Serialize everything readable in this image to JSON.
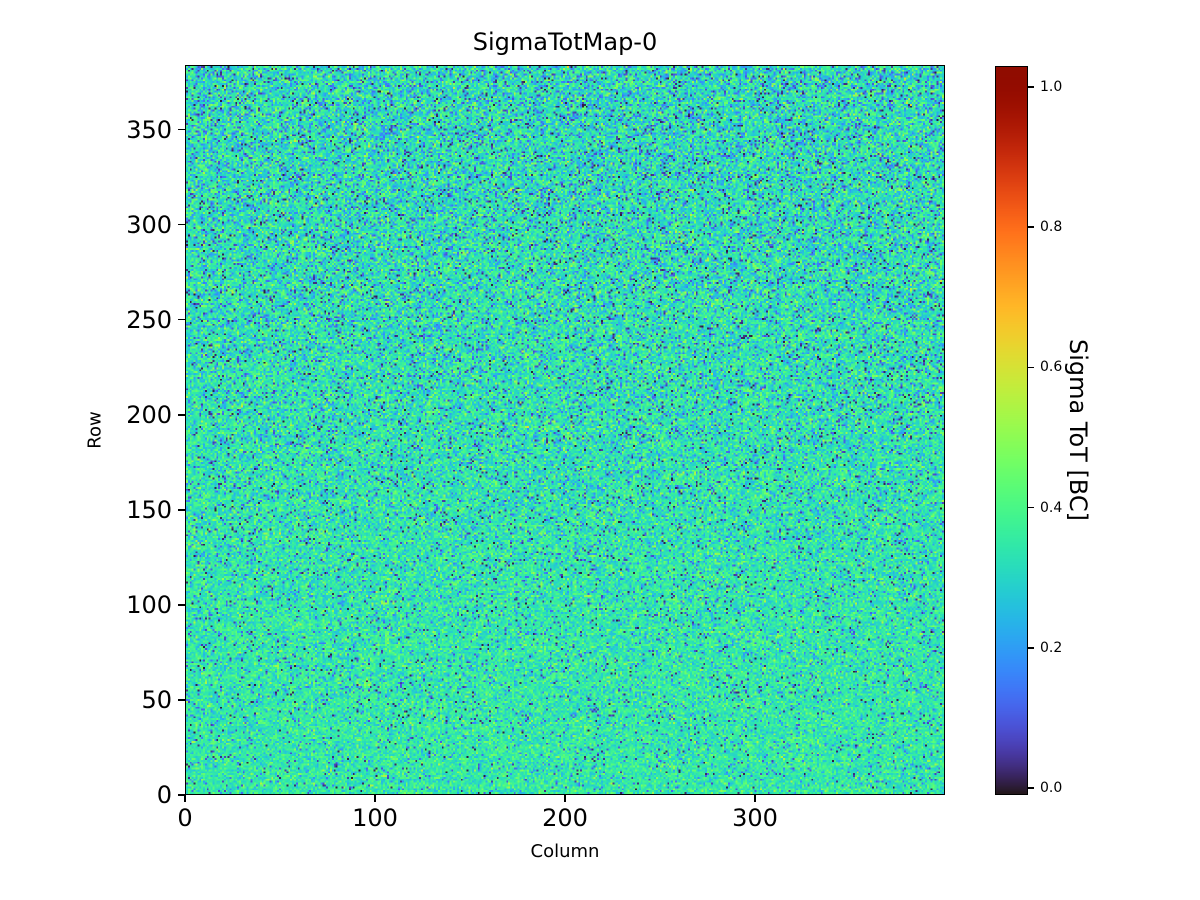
{
  "figure": {
    "background": "#ffffff",
    "text_color": "#000000"
  },
  "chart_data": {
    "type": "heatmap",
    "title": "SigmaTotMap-0",
    "xlabel": "Column",
    "ylabel": "Row",
    "x_range": [
      0,
      400
    ],
    "y_range": [
      0,
      384
    ],
    "x_tick_labels": [
      "0",
      "100",
      "200",
      "300"
    ],
    "x_tick_values": [
      0,
      100,
      200,
      300
    ],
    "y_tick_labels": [
      "0",
      "50",
      "100",
      "150",
      "200",
      "250",
      "300",
      "350"
    ],
    "y_tick_values": [
      0,
      50,
      100,
      150,
      200,
      250,
      300,
      350
    ],
    "grid": false,
    "colormap": "turbo",
    "colorbar": {
      "label": "Sigma ToT [BC]",
      "tick_labels": [
        "0.0",
        "0.2",
        "0.4",
        "0.6",
        "0.8",
        "1.0"
      ],
      "tick_values": [
        0.0,
        0.2,
        0.4,
        0.6,
        0.8,
        1.0
      ],
      "vmin": -0.01,
      "vmax": 1.03,
      "position": "right"
    },
    "matrix": {
      "n_cols": 400,
      "n_rows": 384,
      "description": "Per-pixel sigma-ToT noise map; mostly teal/green values ~0.25-0.45 BC with scattered dark (near 0) outlier pixels, denser toward top rows.",
      "synthesis": {
        "seed": 42,
        "mean_bottom": 0.35,
        "mean_top": 0.325,
        "sigma_bottom": 0.055,
        "sigma_top": 0.085,
        "low_outlier_prob_bottom": 0.05,
        "low_outlier_prob_top": 0.13,
        "low_outlier_max": 0.18,
        "high_outlier_prob": 0.02,
        "high_outlier_min": 0.45,
        "high_outlier_span": 0.1
      }
    }
  }
}
